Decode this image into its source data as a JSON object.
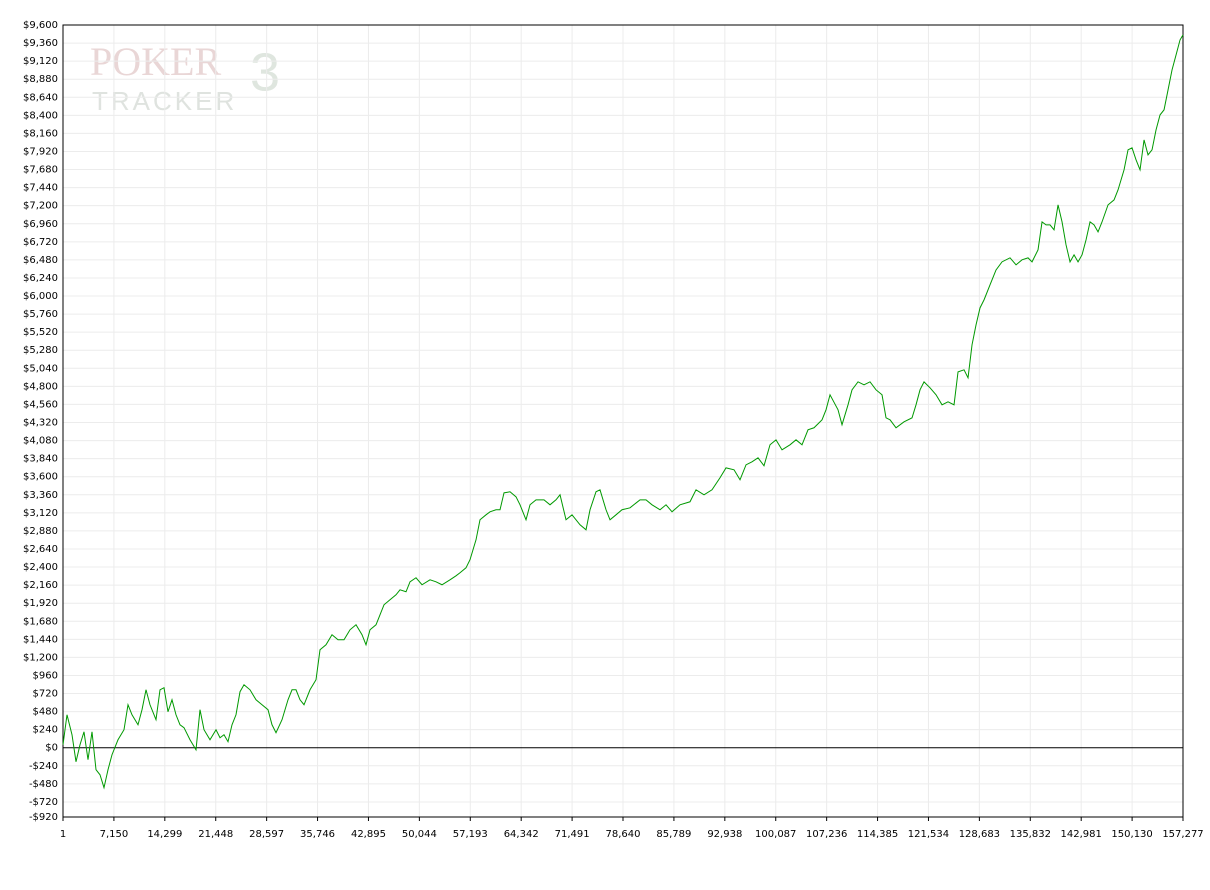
{
  "chart_data": {
    "type": "line",
    "watermark": {
      "line1": "POKER",
      "line2": "TRACKER",
      "badge": "3"
    },
    "x": [
      1,
      563,
      1265,
      1827,
      2388,
      2950,
      3512,
      4073,
      4635,
      5197,
      5759,
      6320,
      6882,
      7725,
      8567,
      9129,
      9691,
      10533,
      11095,
      11657,
      12218,
      13061,
      13623,
      14184,
      14746,
      15308,
      15869,
      16431,
      16993,
      17835,
      18678,
      19240,
      19802,
      20644,
      21487,
      22049,
      22610,
      23172,
      23734,
      24295,
      24857,
      25419,
      26261,
      27104,
      27947,
      28789,
      29351,
      29913,
      30755,
      31598,
      32160,
      32721,
      33283,
      33845,
      34687,
      35530,
      36092,
      36934,
      37777,
      38619,
      39462,
      40304,
      41147,
      41990,
      42551,
      43113,
      43956,
      44517,
      45079,
      45922,
      46764,
      47326,
      48169,
      48730,
      49573,
      50415,
      51539,
      52381,
      53224,
      54347,
      55190,
      55752,
      56594,
      57156,
      57999,
      58560,
      59403,
      59965,
      60807,
      61369,
      61931,
      62773,
      63616,
      64178,
      65020,
      65582,
      66424,
      67548,
      68390,
      69233,
      69795,
      70637,
      71480,
      72603,
      73446,
      74008,
      74850,
      75412,
      76254,
      76816,
      77659,
      78501,
      79625,
      81029,
      81871,
      82714,
      83837,
      84680,
      85522,
      86646,
      88050,
      88893,
      90016,
      91139,
      92263,
      93105,
      94229,
      95071,
      95914,
      96756,
      97599,
      98441,
      99284,
      100127,
      100969,
      102093,
      102935,
      103778,
      104620,
      105463,
      106586,
      107148,
      107710,
      108833,
      109395,
      110238,
      110799,
      111642,
      112484,
      113327,
      114170,
      115012,
      115574,
      116136,
      116978,
      118102,
      119225,
      119787,
      120349,
      120911,
      121753,
      122596,
      123439,
      124281,
      125124,
      125685,
      126528,
      127090,
      127651,
      128213,
      128775,
      129337,
      130179,
      131022,
      131864,
      132988,
      133830,
      134673,
      135516,
      136077,
      136920,
      137482,
      138044,
      138605,
      139167,
      139729,
      140291,
      140852,
      141414,
      141976,
      142538,
      143099,
      143661,
      144223,
      144785,
      145346,
      145908,
      146751,
      147593,
      148155,
      148997,
      149559,
      150121,
      150683,
      151244,
      151806,
      152368,
      152930,
      153491,
      154053,
      154615,
      155177,
      155738,
      156300,
      156862,
      157277
    ],
    "series": [
      {
        "color": "#009900",
        "values": [
          40,
          438,
          173,
          -186,
          40,
          212,
          -159,
          212,
          -292,
          -359,
          -531,
          -292,
          -93,
          106,
          239,
          571,
          438,
          305,
          505,
          770,
          571,
          372,
          770,
          797,
          478,
          637,
          438,
          305,
          266,
          106,
          -27,
          505,
          239,
          106,
          239,
          133,
          173,
          80,
          305,
          438,
          744,
          837,
          770,
          637,
          571,
          505,
          305,
          199,
          372,
          637,
          770,
          770,
          637,
          571,
          770,
          903,
          1301,
          1368,
          1501,
          1434,
          1434,
          1567,
          1633,
          1501,
          1368,
          1567,
          1633,
          1766,
          1899,
          1965,
          2032,
          2098,
          2072,
          2204,
          2258,
          2165,
          2231,
          2204,
          2165,
          2231,
          2284,
          2324,
          2390,
          2497,
          2762,
          3028,
          3094,
          3134,
          3161,
          3161,
          3386,
          3400,
          3333,
          3227,
          3028,
          3227,
          3293,
          3293,
          3227,
          3293,
          3360,
          3028,
          3094,
          2961,
          2895,
          3161,
          3400,
          3426,
          3161,
          3028,
          3094,
          3161,
          3187,
          3293,
          3293,
          3227,
          3161,
          3227,
          3134,
          3227,
          3267,
          3426,
          3360,
          3426,
          3586,
          3718,
          3692,
          3559,
          3758,
          3798,
          3851,
          3745,
          4024,
          4090,
          3957,
          4024,
          4090,
          4024,
          4223,
          4250,
          4356,
          4489,
          4688,
          4489,
          4290,
          4555,
          4754,
          4860,
          4821,
          4860,
          4754,
          4688,
          4382,
          4356,
          4250,
          4329,
          4382,
          4555,
          4754,
          4860,
          4781,
          4688,
          4555,
          4595,
          4555,
          4993,
          5020,
          4914,
          5352,
          5617,
          5843,
          5949,
          6149,
          6346,
          6454,
          6507,
          6414,
          6481,
          6507,
          6454,
          6613,
          6985,
          6945,
          6945,
          6879,
          7211,
          6985,
          6680,
          6454,
          6547,
          6454,
          6547,
          6746,
          6985,
          6945,
          6852,
          6985,
          7211,
          7277,
          7410,
          7676,
          7942,
          7968,
          7809,
          7676,
          8074,
          7875,
          7942,
          8207,
          8406,
          8473,
          8738,
          9004,
          9202,
          9402,
          9468
        ]
      }
    ],
    "xlim": [
      1,
      157277
    ],
    "xticks": [
      1,
      {
        "value": 7150,
        "label": "7,150"
      },
      {
        "value": 14299,
        "label": "14,299"
      },
      {
        "value": 21448,
        "label": "21,448"
      },
      {
        "value": 28597,
        "label": "28,597"
      },
      {
        "value": 35746,
        "label": "35,746"
      },
      {
        "value": 42895,
        "label": "42,895"
      },
      {
        "value": 50044,
        "label": "50,044"
      },
      {
        "value": 57193,
        "label": "57,193"
      },
      {
        "value": 64342,
        "label": "64,342"
      },
      {
        "value": 71491,
        "label": "71,491"
      },
      {
        "value": 78640,
        "label": "78,640"
      },
      {
        "value": 85789,
        "label": "85,789"
      },
      {
        "value": 92938,
        "label": "92,938"
      },
      {
        "value": 100087,
        "label": "100,087"
      },
      {
        "value": 107236,
        "label": "107,236"
      },
      {
        "value": 114385,
        "label": "114,385"
      },
      {
        "value": 121534,
        "label": "121,534"
      },
      {
        "value": 128683,
        "label": "128,683"
      },
      {
        "value": 135832,
        "label": "135,832"
      },
      {
        "value": 142981,
        "label": "142,981"
      },
      {
        "value": 150130,
        "label": "150,130"
      },
      {
        "value": 157277,
        "label": "157,277"
      }
    ],
    "ylim": [
      -920,
      9600
    ],
    "yticks": [
      {
        "value": -920,
        "label": "-$920"
      },
      {
        "value": -720,
        "label": "-$720"
      },
      {
        "value": -480,
        "label": "-$480"
      },
      {
        "value": -240,
        "label": "-$240"
      },
      {
        "value": 0,
        "label": "$0"
      },
      {
        "value": 240,
        "label": "$240"
      },
      {
        "value": 480,
        "label": "$480"
      },
      {
        "value": 720,
        "label": "$720"
      },
      {
        "value": 960,
        "label": "$960"
      },
      {
        "value": 1200,
        "label": "$1,200"
      },
      {
        "value": 1440,
        "label": "$1,440"
      },
      {
        "value": 1680,
        "label": "$1,680"
      },
      {
        "value": 1920,
        "label": "$1,920"
      },
      {
        "value": 2160,
        "label": "$2,160"
      },
      {
        "value": 2400,
        "label": "$2,400"
      },
      {
        "value": 2640,
        "label": "$2,640"
      },
      {
        "value": 2880,
        "label": "$2,880"
      },
      {
        "value": 3120,
        "label": "$3,120"
      },
      {
        "value": 3360,
        "label": "$3,360"
      },
      {
        "value": 3600,
        "label": "$3,600"
      },
      {
        "value": 3840,
        "label": "$3,840"
      },
      {
        "value": 4080,
        "label": "$4,080"
      },
      {
        "value": 4320,
        "label": "$4,320"
      },
      {
        "value": 4560,
        "label": "$4,560"
      },
      {
        "value": 4800,
        "label": "$4,800"
      },
      {
        "value": 5040,
        "label": "$5,040"
      },
      {
        "value": 5280,
        "label": "$5,280"
      },
      {
        "value": 5520,
        "label": "$5,520"
      },
      {
        "value": 5760,
        "label": "$5,760"
      },
      {
        "value": 6000,
        "label": "$6,000"
      },
      {
        "value": 6240,
        "label": "$6,240"
      },
      {
        "value": 6480,
        "label": "$6,480"
      },
      {
        "value": 6720,
        "label": "$6,720"
      },
      {
        "value": 6960,
        "label": "$6,960"
      },
      {
        "value": 7200,
        "label": "$7,200"
      },
      {
        "value": 7440,
        "label": "$7,440"
      },
      {
        "value": 7680,
        "label": "$7,680"
      },
      {
        "value": 7920,
        "label": "$7,920"
      },
      {
        "value": 8160,
        "label": "$8,160"
      },
      {
        "value": 8400,
        "label": "$8,400"
      },
      {
        "value": 8640,
        "label": "$8,640"
      },
      {
        "value": 8880,
        "label": "$8,880"
      },
      {
        "value": 9120,
        "label": "$9,120"
      },
      {
        "value": 9360,
        "label": "$9,360"
      },
      {
        "value": 9600,
        "label": "$9,600"
      }
    ],
    "grid": true
  }
}
